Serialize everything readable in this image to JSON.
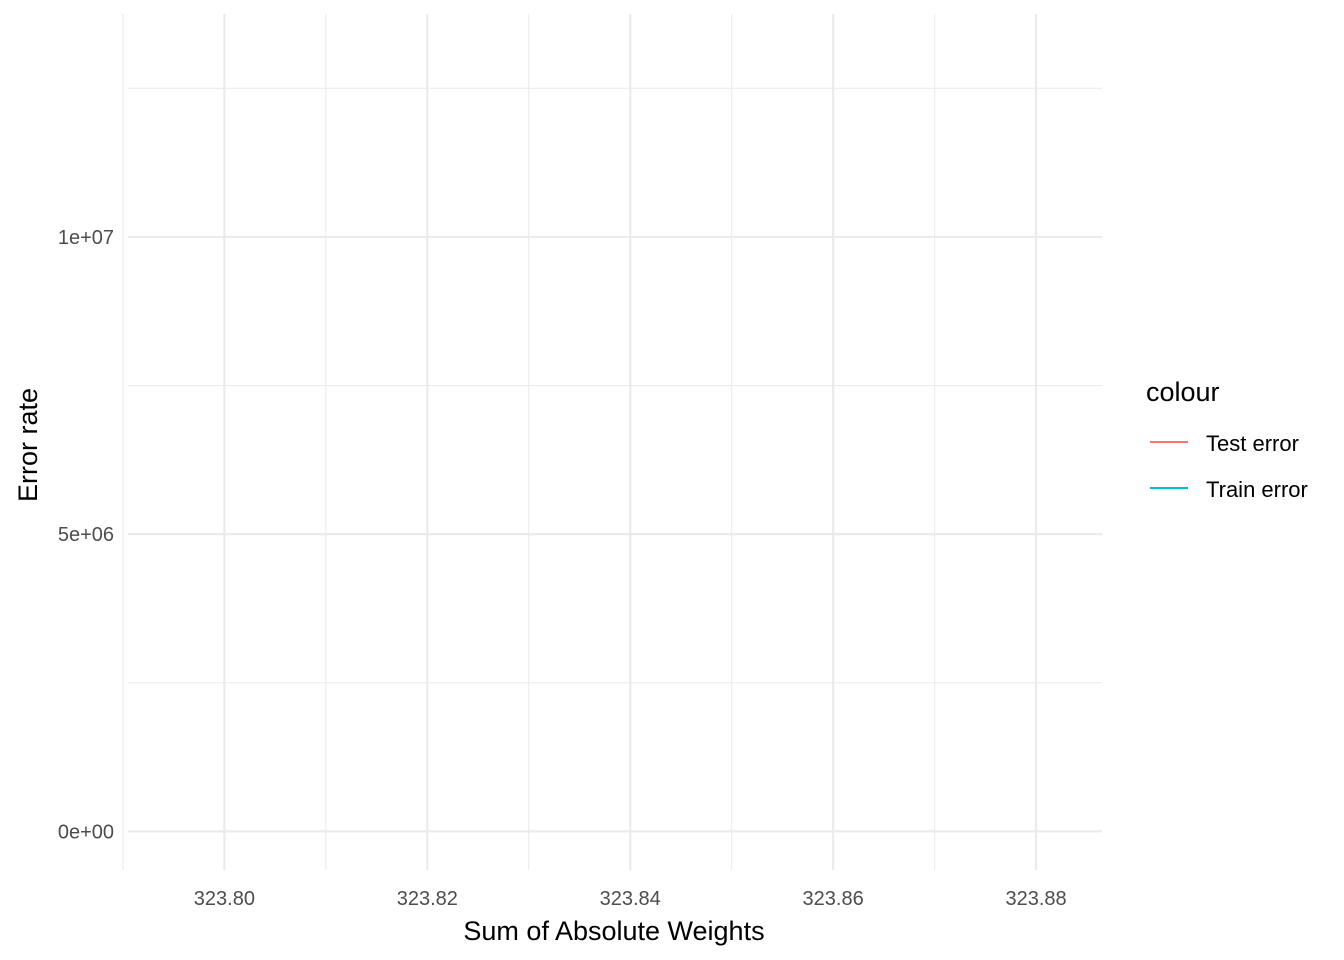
{
  "chart_data": {
    "type": "line",
    "title": "",
    "xlabel": "Sum of Absolute Weights",
    "ylabel": "Error rate",
    "xlim": [
      323.7905,
      323.8865
    ],
    "ylim": [
      -650000,
      13750000
    ],
    "x_ticks": [
      323.8,
      323.82,
      323.84,
      323.86,
      323.88
    ],
    "x_tick_labels": [
      "323.80",
      "323.82",
      "323.84",
      "323.86",
      "323.88"
    ],
    "x_minor_ticks": [
      323.79,
      323.81,
      323.83,
      323.85,
      323.87
    ],
    "y_ticks": [
      0,
      5000000,
      10000000
    ],
    "y_tick_labels": [
      "0e+00",
      "5e+06",
      "1e+07"
    ],
    "y_minor_ticks": [
      2500000,
      7500000,
      12500000
    ],
    "grid": true,
    "legend": {
      "title": "colour",
      "position": "right"
    },
    "series": [
      {
        "name": "Test error",
        "color": "#F8766D",
        "x": [],
        "y": []
      },
      {
        "name": "Train error",
        "color": "#00BFC4",
        "x": [],
        "y": []
      }
    ]
  }
}
